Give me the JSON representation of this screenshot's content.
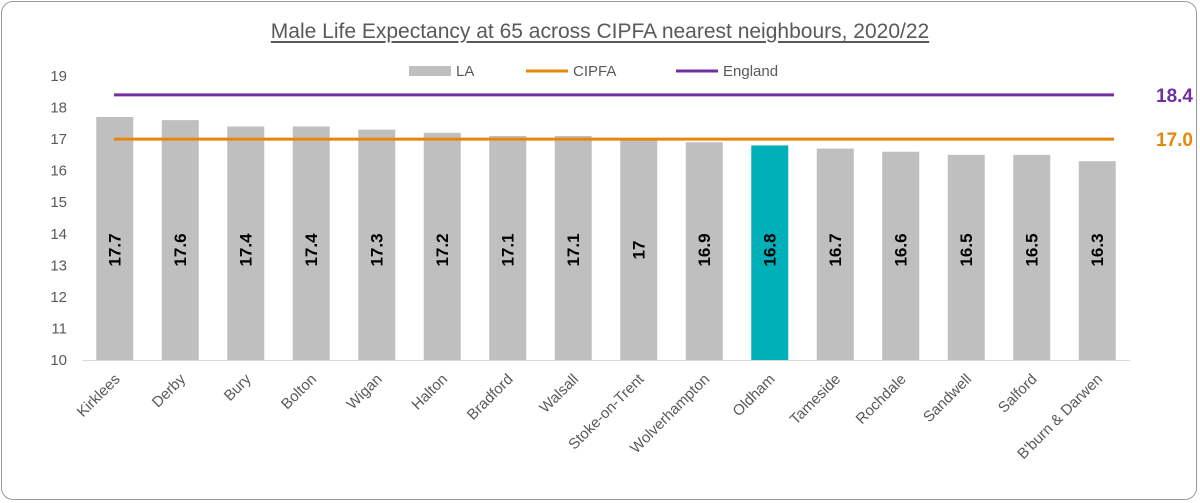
{
  "chart_data": {
    "type": "bar",
    "title": "Male Life Expectancy at 65 across CIPFA nearest neighbours, 2020/22",
    "xlabel": "",
    "ylabel": "",
    "ylim": [
      10,
      19
    ],
    "yticks": [
      "10",
      "11",
      "12",
      "13",
      "14",
      "15",
      "16",
      "17",
      "18",
      "19"
    ],
    "categories": [
      "Kirklees",
      "Derby",
      "Bury",
      "Bolton",
      "Wigan",
      "Halton",
      "Bradford",
      "Walsall",
      "Stoke-on-Trent",
      "Wolverhampton",
      "Oldham",
      "Tameside",
      "Rochdale",
      "Sandwell",
      "Salford",
      "B'burn & Darwen"
    ],
    "values": [
      17.7,
      17.6,
      17.4,
      17.4,
      17.3,
      17.2,
      17.1,
      17.1,
      17,
      16.9,
      16.8,
      16.7,
      16.6,
      16.5,
      16.5,
      16.3
    ],
    "value_labels": [
      "17.7",
      "17.6",
      "17.4",
      "17.4",
      "17.3",
      "17.2",
      "17.1",
      "17.1",
      "17",
      "16.9",
      "16.8",
      "16.7",
      "16.6",
      "16.5",
      "16.5",
      "16.3"
    ],
    "highlight_category": "Oldham",
    "reference_lines": [
      {
        "name": "CIPFA",
        "value": 17.0,
        "label": "17.0",
        "color": "#E8860C"
      },
      {
        "name": "England",
        "value": 18.4,
        "label": "18.4",
        "color": "#7030A0"
      }
    ],
    "legend": {
      "position": "top-center",
      "entries": [
        {
          "name": "LA",
          "kind": "bar",
          "color": "#BFBFBF"
        },
        {
          "name": "CIPFA",
          "kind": "line",
          "color": "#E8860C"
        },
        {
          "name": "England",
          "kind": "line",
          "color": "#7030A0"
        }
      ]
    },
    "colors": {
      "bar": "#BFBFBF",
      "highlight": "#00B0B9",
      "axis": "#D9D9D9"
    },
    "grid": false
  }
}
